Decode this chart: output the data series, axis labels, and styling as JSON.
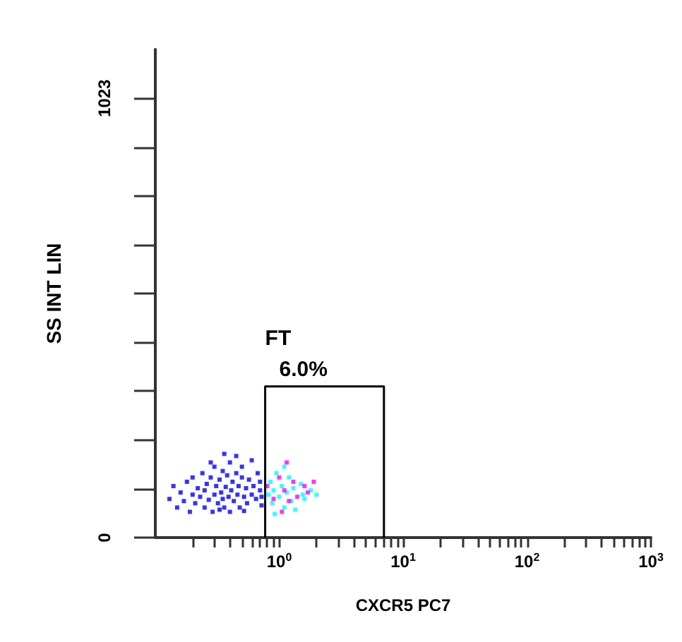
{
  "chart_data": {
    "type": "scatter",
    "xlabel": "CXCR5 PC7",
    "ylabel": "SS INT LIN",
    "log": "x",
    "grid": false,
    "marker": "square",
    "xlim": [
      0.1,
      1000
    ],
    "ylim": [
      0,
      1137
    ],
    "xticks": [
      {
        "value": 0.2,
        "label": null
      },
      {
        "value": 0.3,
        "label": null
      },
      {
        "value": 0.4,
        "label": null
      },
      {
        "value": 0.5,
        "label": null
      },
      {
        "value": 0.6,
        "label": null
      },
      {
        "value": 0.7,
        "label": null
      },
      {
        "value": 0.8,
        "label": null
      },
      {
        "value": 0.9,
        "label": null
      },
      {
        "value": 1,
        "label": "10$^{0}$"
      },
      {
        "value": 2,
        "label": null
      },
      {
        "value": 3,
        "label": null
      },
      {
        "value": 4,
        "label": null
      },
      {
        "value": 5,
        "label": null
      },
      {
        "value": 6,
        "label": null
      },
      {
        "value": 7,
        "label": null
      },
      {
        "value": 8,
        "label": null
      },
      {
        "value": 9,
        "label": null
      },
      {
        "value": 10,
        "label": "10$^{1}$"
      },
      {
        "value": 20,
        "label": null
      },
      {
        "value": 30,
        "label": null
      },
      {
        "value": 40,
        "label": null
      },
      {
        "value": 50,
        "label": null
      },
      {
        "value": 60,
        "label": null
      },
      {
        "value": 70,
        "label": null
      },
      {
        "value": 80,
        "label": null
      },
      {
        "value": 90,
        "label": null
      },
      {
        "value": 100,
        "label": "10$^{2}$"
      },
      {
        "value": 200,
        "label": null
      },
      {
        "value": 300,
        "label": null
      },
      {
        "value": 400,
        "label": null
      },
      {
        "value": 500,
        "label": null
      },
      {
        "value": 600,
        "label": null
      },
      {
        "value": 700,
        "label": null
      },
      {
        "value": 800,
        "label": null
      },
      {
        "value": 900,
        "label": null
      },
      {
        "value": 1000,
        "label": "10$^{3}$"
      }
    ],
    "yticks": [
      0,
      {
        "value": 113.7,
        "label": null
      },
      {
        "value": 227.3,
        "label": null
      },
      {
        "value": 341,
        "label": null
      },
      {
        "value": 454.7,
        "label": null
      },
      {
        "value": 568.3,
        "label": null
      },
      {
        "value": 682,
        "label": null
      },
      {
        "value": 795.7,
        "label": null
      },
      {
        "value": 909.3,
        "label": null
      },
      1023
    ],
    "annotations": [
      "FT",
      "6.0%"
    ],
    "series": [
      {
        "color": "#0000ff",
        "x": [
          0.13,
          0.14,
          0.15,
          0.16,
          0.17,
          0.18,
          0.19,
          0.2,
          0.2,
          0.21,
          0.22,
          0.23,
          0.24,
          0.25,
          0.25,
          0.26,
          0.27,
          0.28,
          0.29,
          0.3,
          0.3,
          0.31,
          0.32,
          0.33,
          0.34,
          0.35,
          0.35,
          0.36,
          0.37,
          0.38,
          0.39,
          0.4,
          0.4,
          0.41,
          0.42,
          0.43,
          0.45,
          0.46,
          0.47,
          0.48,
          0.5,
          0.5,
          0.52,
          0.54,
          0.55,
          0.57,
          0.6,
          0.6,
          0.62,
          0.65,
          0.67,
          0.7,
          0.72,
          0.7,
          0.72,
          0.36,
          0.45,
          0.28,
          0.52,
          0.33
        ],
        "values": [
          90,
          120,
          70,
          105,
          85,
          130,
          60,
          100,
          140,
          80,
          115,
          95,
          150,
          70,
          110,
          125,
          88,
          140,
          60,
          100,
          165,
          120,
          80,
          135,
          105,
          90,
          155,
          70,
          118,
          145,
          95,
          175,
          60,
          110,
          130,
          85,
          150,
          100,
          120,
          70,
          140,
          165,
          95,
          115,
          80,
          135,
          100,
          180,
          120,
          90,
          150,
          110,
          75,
          130,
          95,
          195,
          190,
          175,
          62,
          65
        ]
      },
      {
        "color": "#00ffff",
        "x": [
          0.82,
          0.85,
          0.88,
          0.9,
          0.95,
          1.0,
          1.05,
          1.1,
          1.15,
          1.2,
          1.25,
          1.3,
          1.55,
          1.5,
          1.6,
          1.8,
          2.0,
          1.1,
          0.92,
          1.35
        ],
        "values": [
          100,
          130,
          80,
          110,
          150,
          95,
          120,
          70,
          105,
          140,
          85,
          115,
          100,
          125,
          90,
          110,
          100,
          165,
          55,
          65
        ]
      },
      {
        "color": "#ff00ff",
        "x": [
          0.8,
          0.9,
          1.0,
          1.1,
          1.2,
          1.3,
          1.4,
          1.6,
          1.9,
          1.05,
          1.15,
          1.7
        ],
        "values": [
          120,
          90,
          140,
          110,
          85,
          130,
          95,
          120,
          130,
          60,
          175,
          105
        ]
      },
      {
        "type": "line",
        "color": "#000000",
        "marker": "none",
        "line_style": "solid",
        "x": [
          0.77,
          0.77,
          7,
          7
        ],
        "values": [
          0,
          352,
          352,
          0
        ]
      }
    ]
  }
}
